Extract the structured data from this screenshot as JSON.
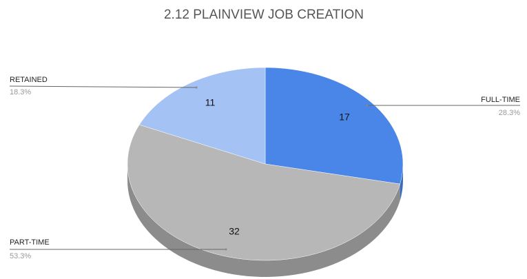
{
  "chart_data": {
    "type": "pie",
    "title": "2.12 PLAINVIEW JOB CREATION",
    "categories": [
      "FULL-TIME",
      "PART-TIME",
      "RETAINED"
    ],
    "values": [
      17,
      32,
      11
    ],
    "percent_labels": [
      "28.3%",
      "53.3%",
      "18.3%"
    ],
    "colors": [
      "#4a86e8",
      "#b7b7b7",
      "#a4c2f4"
    ],
    "side_colors": [
      "#3a6cc0",
      "#8c8c8c",
      "#7f9ccb"
    ],
    "three_d": true
  }
}
